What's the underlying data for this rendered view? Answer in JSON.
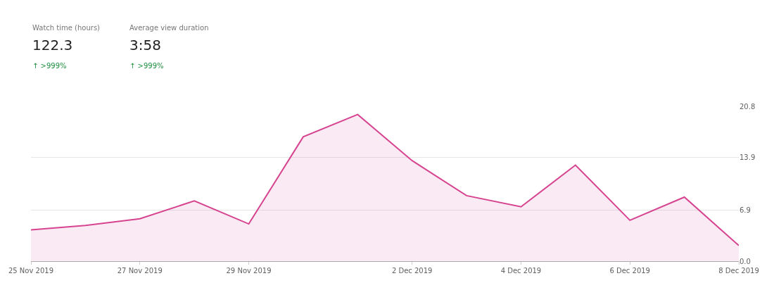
{
  "chart_data": {
    "type": "area",
    "annotations": [
      "Watch time (hours)",
      "122.3",
      "↑ >999%",
      "Average view duration",
      "3:58",
      "↑ >999%"
    ],
    "x": [
      "2019-11-25",
      "2019-11-26",
      "2019-11-27",
      "2019-11-28",
      "2019-11-29",
      "2019-11-30",
      "2019-12-01",
      "2019-12-02",
      "2019-12-03",
      "2019-12-04",
      "2019-12-05",
      "2019-12-06",
      "2019-12-07",
      "2019-12-08"
    ],
    "series": [
      {
        "color": "#d6438f",
        "values": [
          4.2,
          4.8,
          5.7,
          8.1,
          5.0,
          16.7,
          19.7,
          13.5,
          8.8,
          7.3,
          12.9,
          5.5,
          8.6,
          2.1
        ]
      }
    ],
    "xlim": [
      "2019-11-25",
      "2019-12-08"
    ],
    "xticks": [
      {
        "value": "2019-11-25",
        "label": "25 Nov 2019"
      },
      {
        "value": "2019-11-27",
        "label": "27 Nov 2019"
      },
      {
        "value": "2019-11-29",
        "label": "29 Nov 2019"
      },
      {
        "value": "2019-12-02",
        "label": "2 Dec 2019"
      },
      {
        "value": "2019-12-04",
        "label": "4 Dec 2019"
      },
      {
        "value": "2019-12-06",
        "label": "6 Dec 2019"
      },
      {
        "value": "2019-12-08",
        "label": "8 Dec 2019"
      }
    ],
    "ylim": [
      0,
      20.8
    ],
    "yticks": [
      {
        "value": 0,
        "label": "0.0"
      },
      6.9,
      13.9,
      20.8
    ],
    "grid": "y",
    "marker": "none",
    "line_style": "solid"
  }
}
